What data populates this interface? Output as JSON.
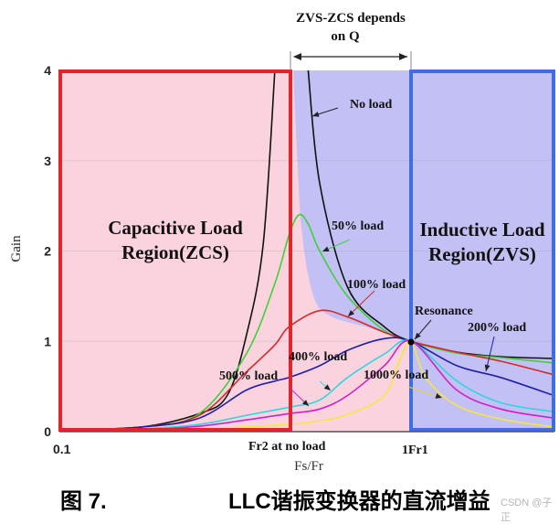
{
  "chart_data": {
    "type": "line",
    "xlabel": "Fs/Fr",
    "ylabel": "Gain",
    "xscale": "log",
    "xlim": [
      0.1,
      2.55
    ],
    "ylim": [
      0,
      4
    ],
    "yticks": [
      "0",
      "1",
      "2",
      "3",
      "4"
    ],
    "xticks": [
      {
        "value": 0.1,
        "label": "0.1"
      },
      {
        "value": 0.45,
        "label": "Fr2 at no load"
      },
      {
        "value": 1,
        "label": "1Fr1"
      }
    ],
    "grid": true,
    "regions": {
      "capacitive": {
        "label_line1": "Capacitive Load",
        "label_line2": "Region(ZCS)",
        "x_range": [
          0.1,
          0.45
        ],
        "border_color": "#e5232a",
        "fill_color": "#fbd3df"
      },
      "inductive": {
        "label_line1": "Inductive Load",
        "label_line2": "Region(ZVS)",
        "x_range": [
          1,
          2.55
        ],
        "border_color": "#3d6fe0",
        "fill_color": "#c3c0f5"
      },
      "transition": {
        "label_line1": "ZVS-ZCS depends",
        "label_line2": "on Q",
        "x_range": [
          0.45,
          1
        ]
      }
    },
    "resonance_label": "Resonance",
    "resonance_point": [
      1,
      1
    ],
    "series": [
      {
        "name": "No load",
        "color": "#111111",
        "segments": [
          [
            [
              0.1,
              0.02
            ],
            [
              0.17,
              0.05
            ],
            [
              0.25,
              0.2
            ],
            [
              0.3,
              0.4
            ],
            [
              0.34,
              1.06
            ],
            [
              0.38,
              2.08
            ],
            [
              0.41,
              4.0
            ]
          ],
          [
            [
              0.51,
              4.0
            ],
            [
              0.55,
              2.75
            ],
            [
              0.66,
              1.6
            ],
            [
              0.84,
              1.16
            ],
            [
              1,
              1.0
            ],
            [
              1.35,
              0.88
            ],
            [
              1.8,
              0.83
            ],
            [
              2.55,
              0.81
            ]
          ]
        ]
      },
      {
        "name": "50% load",
        "color": "#3fd03a",
        "segments": [
          [
            [
              0.1,
              0.02
            ],
            [
              0.17,
              0.05
            ],
            [
              0.25,
              0.2
            ],
            [
              0.34,
              0.86
            ],
            [
              0.41,
              1.64
            ],
            [
              0.45,
              2.18
            ],
            [
              0.48,
              2.4
            ],
            [
              0.51,
              2.3
            ],
            [
              0.55,
              2.0
            ],
            [
              0.66,
              1.5
            ],
            [
              0.84,
              1.12
            ],
            [
              1,
              1.0
            ],
            [
              1.35,
              0.87
            ],
            [
              1.8,
              0.82
            ],
            [
              2.55,
              0.76
            ]
          ]
        ]
      },
      {
        "name": "100% load",
        "color": "#d42a2a",
        "segments": [
          [
            [
              0.1,
              0.02
            ],
            [
              0.17,
              0.05
            ],
            [
              0.25,
              0.18
            ],
            [
              0.34,
              0.66
            ],
            [
              0.41,
              0.96
            ],
            [
              0.45,
              1.16
            ],
            [
              0.55,
              1.34
            ],
            [
              0.66,
              1.27
            ],
            [
              0.84,
              1.1
            ],
            [
              1,
              1.0
            ],
            [
              1.35,
              0.88
            ],
            [
              1.8,
              0.78
            ],
            [
              2.55,
              0.63
            ]
          ]
        ]
      },
      {
        "name": "200% load",
        "color": "#1f1fa8",
        "segments": [
          [
            [
              0.1,
              0.01
            ],
            [
              0.17,
              0.05
            ],
            [
              0.25,
              0.15
            ],
            [
              0.34,
              0.46
            ],
            [
              0.41,
              0.56
            ],
            [
              0.45,
              0.6
            ],
            [
              0.55,
              0.73
            ],
            [
              0.66,
              0.9
            ],
            [
              0.84,
              1.03
            ],
            [
              1,
              1.0
            ],
            [
              1.35,
              0.73
            ],
            [
              1.8,
              0.6
            ],
            [
              2.55,
              0.4
            ]
          ]
        ]
      },
      {
        "name": "400% load",
        "color": "#2fd6e0",
        "segments": [
          [
            [
              0.1,
              0.01
            ],
            [
              0.17,
              0.03
            ],
            [
              0.25,
              0.08
            ],
            [
              0.34,
              0.18
            ],
            [
              0.45,
              0.27
            ],
            [
              0.55,
              0.35
            ],
            [
              0.66,
              0.6
            ],
            [
              0.84,
              0.86
            ],
            [
              1,
              1.0
            ],
            [
              1.35,
              0.56
            ],
            [
              1.8,
              0.32
            ],
            [
              2.55,
              0.22
            ]
          ]
        ]
      },
      {
        "name": "500% load",
        "color": "#d020c8",
        "segments": [
          [
            [
              0.1,
              0.01
            ],
            [
              0.17,
              0.02
            ],
            [
              0.25,
              0.06
            ],
            [
              0.34,
              0.13
            ],
            [
              0.45,
              0.2
            ],
            [
              0.55,
              0.25
            ],
            [
              0.66,
              0.4
            ],
            [
              0.84,
              0.73
            ],
            [
              1,
              1.0
            ],
            [
              1.35,
              0.46
            ],
            [
              1.8,
              0.25
            ],
            [
              2.55,
              0.15
            ]
          ]
        ]
      },
      {
        "name": "1000% load",
        "color": "#f5e640",
        "segments": [
          [
            [
              0.1,
              0.0
            ],
            [
              0.25,
              0.03
            ],
            [
              0.45,
              0.08
            ],
            [
              0.55,
              0.12
            ],
            [
              0.66,
              0.19
            ],
            [
              0.84,
              0.4
            ],
            [
              0.93,
              0.8
            ],
            [
              1,
              1.0
            ],
            [
              1.1,
              0.6
            ],
            [
              1.35,
              0.29
            ],
            [
              1.8,
              0.14
            ],
            [
              2.55,
              0.05
            ]
          ]
        ]
      }
    ]
  },
  "caption": {
    "figure": "图 7.",
    "title": "LLC谐振变换器的直流增益"
  },
  "watermark": "CSDN @子正"
}
